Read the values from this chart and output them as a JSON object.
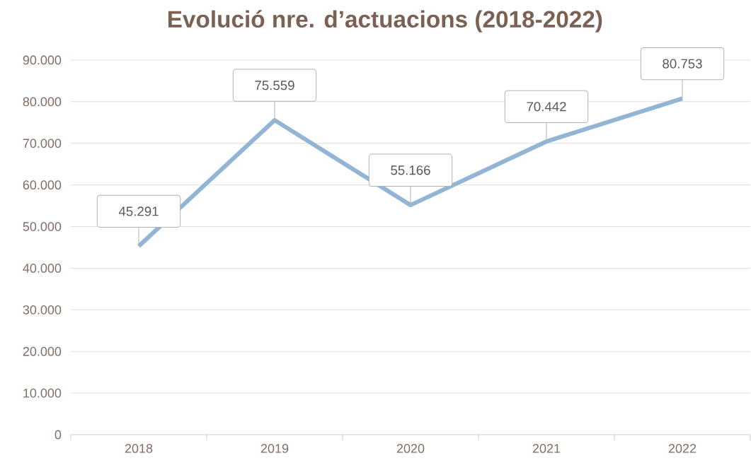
{
  "chart_data": {
    "type": "line",
    "title": "Evolució nre. d’actuacions (2018-2022)",
    "categories": [
      "2018",
      "2019",
      "2020",
      "2021",
      "2022"
    ],
    "values": [
      45291,
      75559,
      55166,
      70442,
      80753
    ],
    "value_labels": [
      "45.291",
      "75.559",
      "55.166",
      "70.442",
      "80.753"
    ],
    "color": "#93b5d5",
    "ylim": [
      0,
      90000
    ],
    "yticks": [
      0,
      {
        "value": 10000,
        "label": "10.000"
      },
      {
        "value": 20000,
        "label": "20.000"
      },
      {
        "value": 30000,
        "label": "30.000"
      },
      {
        "value": 40000,
        "label": "40.000"
      },
      {
        "value": 50000,
        "label": "50.000"
      },
      {
        "value": 60000,
        "label": "60.000"
      },
      {
        "value": 70000,
        "label": "70.000"
      },
      {
        "value": 80000,
        "label": "80.000"
      },
      {
        "value": 90000,
        "label": "90.000"
      }
    ],
    "grid": "y",
    "marker": "none",
    "line_style": "solid"
  }
}
